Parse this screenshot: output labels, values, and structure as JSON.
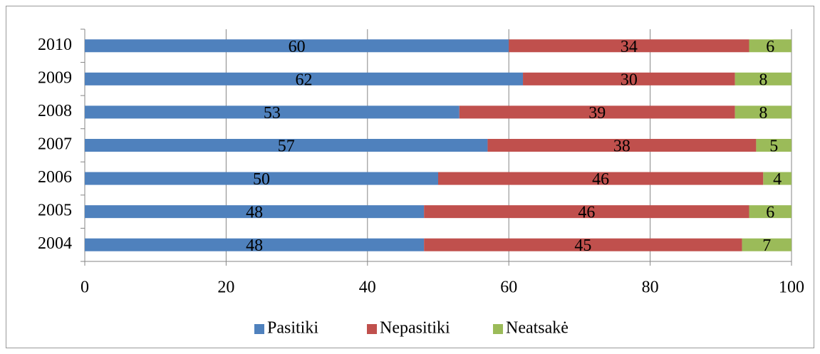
{
  "chart_data": {
    "type": "stacked-bar-horizontal",
    "categories": [
      "2010",
      "2009",
      "2008",
      "2007",
      "2006",
      "2005",
      "2004"
    ],
    "series": [
      {
        "name": "Pasitiki",
        "color": "#4f81bd",
        "values": [
          60,
          62,
          53,
          57,
          50,
          48,
          48
        ]
      },
      {
        "name": "Nepasitiki",
        "color": "#c0504d",
        "values": [
          34,
          30,
          39,
          38,
          46,
          46,
          45
        ]
      },
      {
        "name": "Neatsakė",
        "color": "#9bbb59",
        "values": [
          6,
          8,
          8,
          5,
          4,
          6,
          7
        ]
      }
    ],
    "xlim": [
      0,
      100
    ],
    "xticks": [
      0,
      20,
      40,
      60,
      80,
      100
    ],
    "grid": true,
    "legend": "bottom"
  }
}
